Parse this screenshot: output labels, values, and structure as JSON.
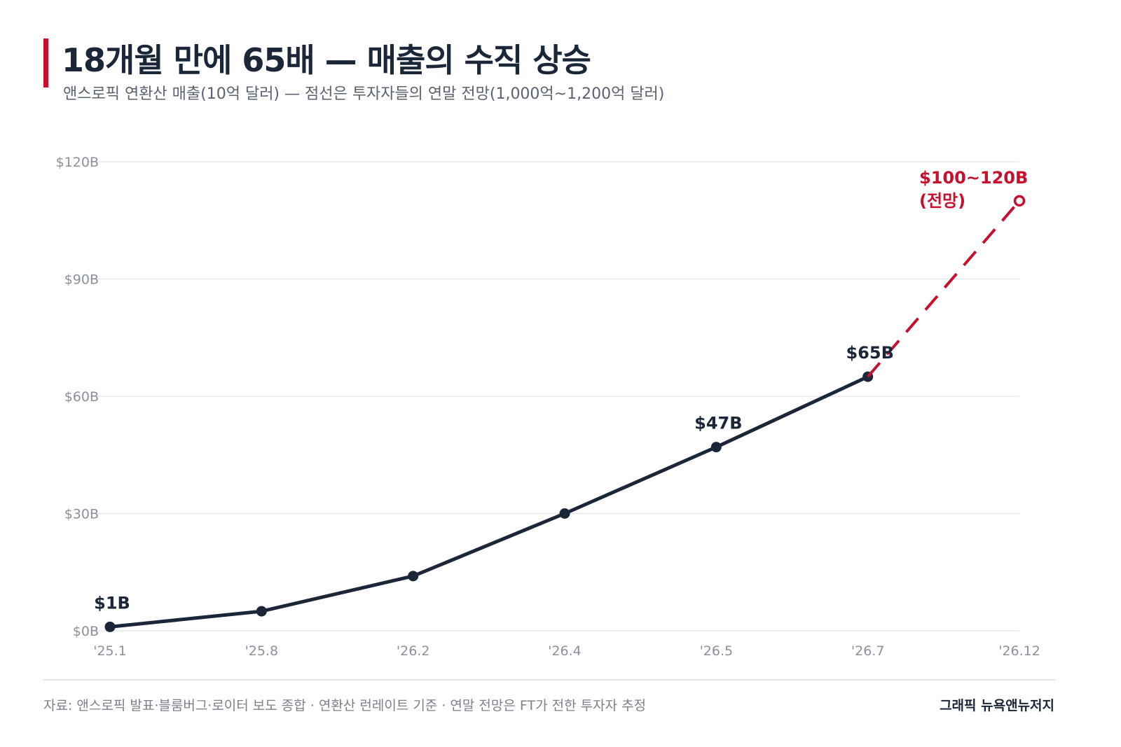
{
  "header": {
    "title": "18개월 만에 65배 — 매출의 수직 상승",
    "subtitle": "앤스로픽 연환산 매출(10억 달러) — 점선은 투자자들의 연말 전망(1,000억~1,200억 달러)"
  },
  "footer": {
    "source": "자료: 앤스로픽 발표·블룸버그·로이터 보도 종합 · 연환산 런레이트 기준 · 연말 전망은 FT가 전한 투자자 추정",
    "credit": "그래픽 뉴욕앤뉴저지"
  },
  "colors": {
    "accent": "#c8102e",
    "line": "#1b2738",
    "grid": "#e3e4e8",
    "tick": "#8a909c"
  },
  "chart_data": {
    "type": "line",
    "categories": [
      "'25.1",
      "'25.8",
      "'26.2",
      "'26.4",
      "'26.5",
      "'26.7",
      "'26.12"
    ],
    "ylim": [
      0,
      120
    ],
    "yticks": [
      0,
      30,
      60,
      90,
      120
    ],
    "ytick_labels": [
      "$0B",
      "$30B",
      "$60B",
      "$90B",
      "$120B"
    ],
    "grid": true,
    "series": [
      {
        "style": "solid",
        "values": [
          1,
          5,
          14,
          30,
          47,
          65,
          null
        ]
      },
      {
        "style": "dashed",
        "values": [
          null,
          null,
          null,
          null,
          null,
          65,
          110
        ]
      }
    ],
    "annotations": [
      {
        "index": 0,
        "text": "$1B",
        "style": "dark"
      },
      {
        "index": 4,
        "text": "$47B",
        "style": "dark"
      },
      {
        "index": 5,
        "text": "$65B",
        "style": "dark"
      },
      {
        "index": 6,
        "text": "$100~120B",
        "text2": "(전망)",
        "style": "accent"
      }
    ]
  }
}
